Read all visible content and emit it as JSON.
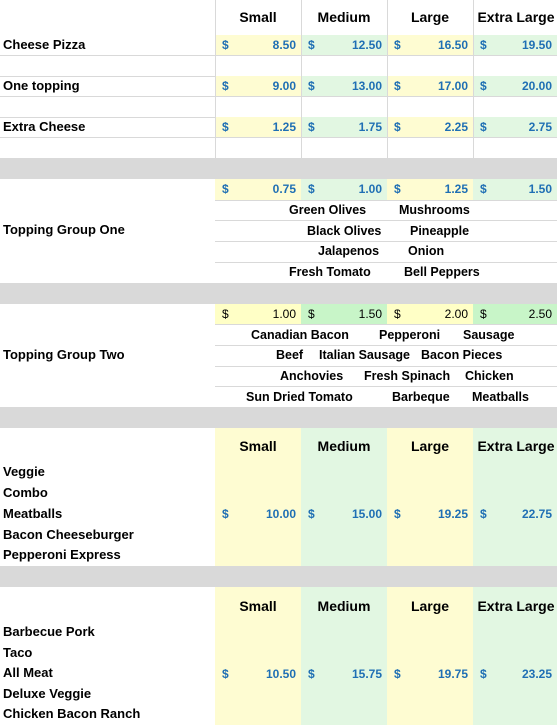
{
  "header": {
    "small": "Small",
    "medium": "Medium",
    "large": "Large",
    "xlarge": "Extra Large"
  },
  "base": {
    "cheese": {
      "label": "Cheese Pizza",
      "prices": [
        "8.50",
        "12.50",
        "16.50",
        "19.50"
      ]
    },
    "one_topping": {
      "label": "One topping",
      "prices": [
        "9.00",
        "13.00",
        "17.00",
        "20.00"
      ]
    },
    "extra_cheese": {
      "label": "Extra Cheese",
      "prices": [
        "1.25",
        "1.75",
        "2.25",
        "2.75"
      ]
    }
  },
  "currency": "$",
  "group_one": {
    "label": "Topping Group One",
    "prices": [
      "0.75",
      "1.00",
      "1.25",
      "1.50"
    ],
    "toppings": [
      [
        "Green Olives",
        "Mushrooms"
      ],
      [
        "Black Olives",
        "Pineapple"
      ],
      [
        "Jalapenos",
        "Onion"
      ],
      [
        "Fresh Tomato",
        "Bell Peppers"
      ]
    ]
  },
  "group_two": {
    "label": "Topping Group Two",
    "prices": [
      "1.00",
      "1.50",
      "2.00",
      "2.50"
    ],
    "toppings": [
      [
        "Canadian Bacon",
        "Pepperoni",
        "Sausage"
      ],
      [
        "Beef",
        "Italian Sausage",
        "Bacon Pieces"
      ],
      [
        "Anchovies",
        "Fresh Spinach",
        "Chicken"
      ],
      [
        "Sun Dried Tomato",
        "Barbeque",
        "Meatballs"
      ]
    ]
  },
  "specialty_one": {
    "items": [
      "Veggie",
      "Combo",
      "Meatballs",
      "Bacon Cheeseburger",
      "Pepperoni Express"
    ],
    "prices": [
      "10.00",
      "15.00",
      "19.25",
      "22.75"
    ]
  },
  "specialty_two": {
    "items": [
      "Barbecue Pork",
      "Taco",
      "All Meat",
      "Deluxe Veggie",
      "Chicken Bacon Ranch"
    ],
    "prices": [
      "10.50",
      "15.75",
      "19.75",
      "23.25"
    ]
  },
  "colors": {
    "price_blue": "#1f6fb4",
    "yellow": "#fefcd2",
    "green": "#e2f7e2",
    "gray": "#d9d9d9"
  }
}
